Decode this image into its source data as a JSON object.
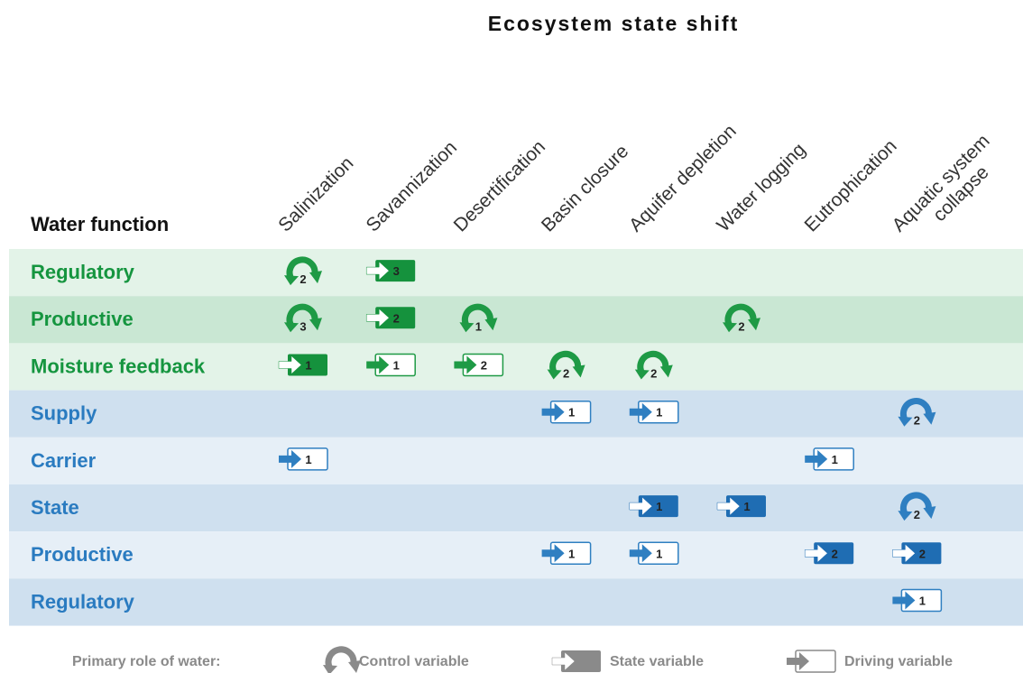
{
  "title": "Ecosystem state shift",
  "row_header": "Water function",
  "columns": [
    [
      "Salinization"
    ],
    [
      "Savannization"
    ],
    [
      "Desertification"
    ],
    [
      "Basin closure"
    ],
    [
      "Aquifer depletion"
    ],
    [
      "Water logging"
    ],
    [
      "Eutrophication"
    ],
    [
      "Aquatic system",
      "collapse"
    ]
  ],
  "rows": [
    {
      "label": "Regulatory",
      "group": "green",
      "cells": [
        {
          "col": 0,
          "role": "control",
          "value": 2
        },
        {
          "col": 1,
          "role": "state",
          "value": 3
        }
      ]
    },
    {
      "label": "Productive",
      "group": "green",
      "cells": [
        {
          "col": 0,
          "role": "control",
          "value": 3
        },
        {
          "col": 1,
          "role": "state",
          "value": 2
        },
        {
          "col": 2,
          "role": "control",
          "value": 1
        },
        {
          "col": 5,
          "role": "control",
          "value": 2
        }
      ]
    },
    {
      "label": "Moisture feedback",
      "group": "green",
      "cells": [
        {
          "col": 0,
          "role": "state",
          "value": 1
        },
        {
          "col": 1,
          "role": "driving",
          "value": 1
        },
        {
          "col": 2,
          "role": "driving",
          "value": 2
        },
        {
          "col": 3,
          "role": "control",
          "value": 2
        },
        {
          "col": 4,
          "role": "control",
          "value": 2
        }
      ]
    },
    {
      "label": "Supply",
      "group": "blue",
      "cells": [
        {
          "col": 3,
          "role": "driving",
          "value": 1
        },
        {
          "col": 4,
          "role": "driving",
          "value": 1
        },
        {
          "col": 7,
          "role": "control",
          "value": 2
        }
      ]
    },
    {
      "label": "Carrier",
      "group": "blue",
      "cells": [
        {
          "col": 0,
          "role": "driving",
          "value": 1
        },
        {
          "col": 6,
          "role": "driving",
          "value": 1
        }
      ]
    },
    {
      "label": "State",
      "group": "blue",
      "cells": [
        {
          "col": 4,
          "role": "state",
          "value": 1
        },
        {
          "col": 5,
          "role": "state",
          "value": 1
        },
        {
          "col": 7,
          "role": "control",
          "value": 2
        }
      ]
    },
    {
      "label": "Productive",
      "group": "blue",
      "cells": [
        {
          "col": 3,
          "role": "driving",
          "value": 1
        },
        {
          "col": 4,
          "role": "driving",
          "value": 1
        },
        {
          "col": 6,
          "role": "state",
          "value": 2
        },
        {
          "col": 7,
          "role": "state",
          "value": 2
        }
      ]
    },
    {
      "label": "Regulatory",
      "group": "blue",
      "cells": [
        {
          "col": 7,
          "role": "driving",
          "value": 1
        }
      ]
    }
  ],
  "legend": {
    "title": "Primary role of water:",
    "items": [
      {
        "role": "control",
        "label": "Control variable"
      },
      {
        "role": "state",
        "label": "State variable"
      },
      {
        "role": "driving",
        "label": "Driving variable"
      }
    ]
  }
}
